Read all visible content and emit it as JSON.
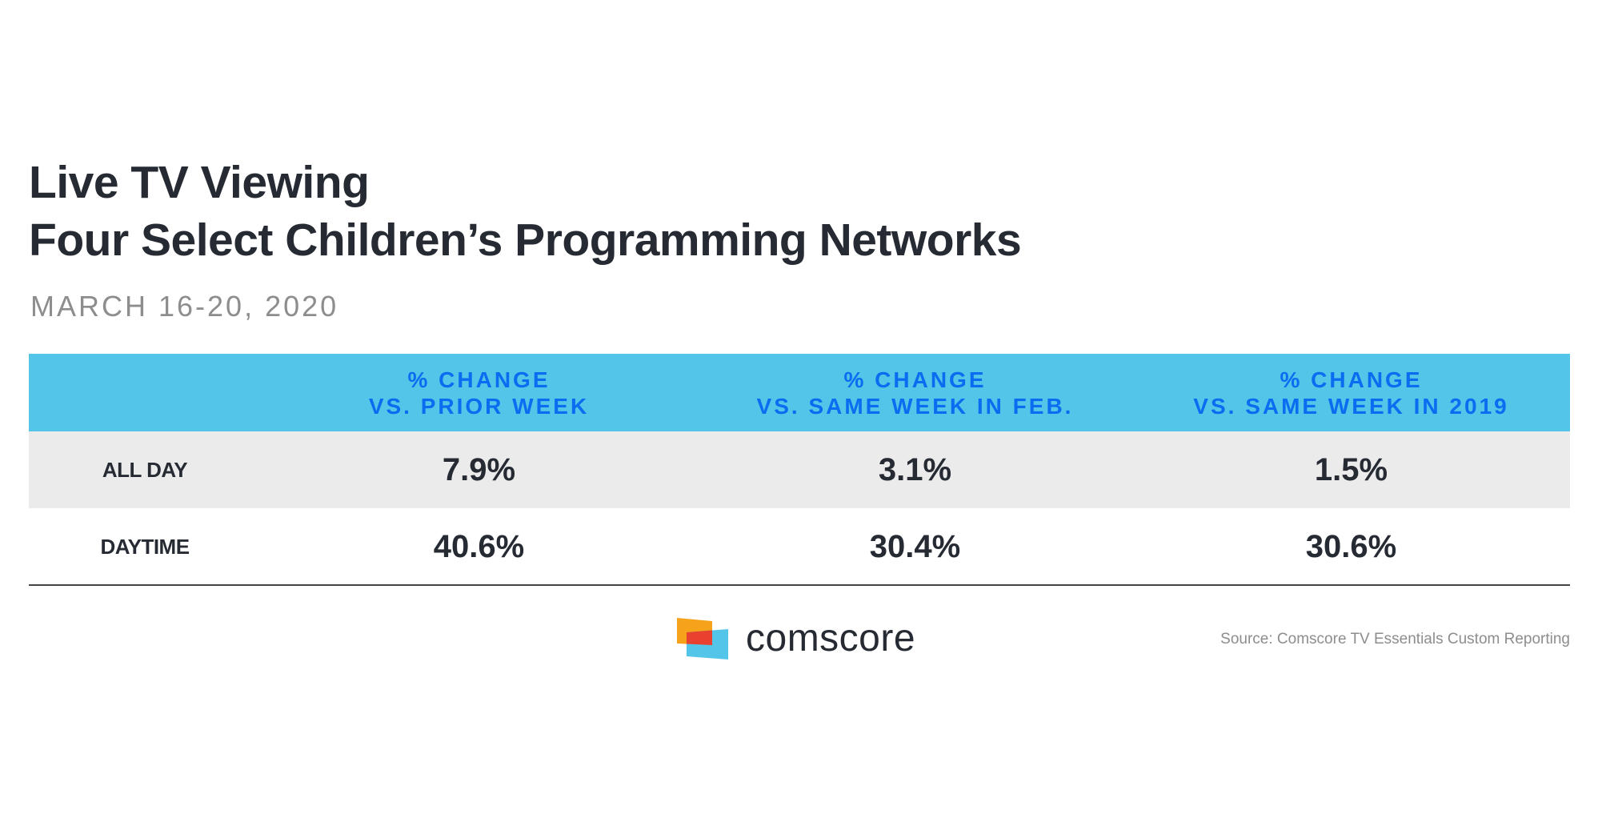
{
  "title_line1": "Live TV Viewing",
  "title_line2": "Four Select Children’s Programming Networks",
  "subtitle": "MARCH 16-20, 2020",
  "table": {
    "columns": [
      {
        "line1": "% CHANGE",
        "line2": "VS. PRIOR WEEK"
      },
      {
        "line1": "% CHANGE",
        "line2": "VS. SAME WEEK IN FEB."
      },
      {
        "line1": "% CHANGE",
        "line2": "VS. SAME WEEK IN 2019"
      }
    ],
    "rows": [
      {
        "label": "ALL DAY",
        "values": [
          "7.9%",
          "3.1%",
          "1.5%"
        ]
      },
      {
        "label": "DAYTIME",
        "values": [
          "40.6%",
          "30.4%",
          "30.6%"
        ]
      }
    ]
  },
  "footer": {
    "brand": "comscore",
    "source": "Source: Comscore TV Essentials Custom Reporting"
  },
  "colors": {
    "header_bg": "#52c5e8",
    "header_text": "#0a6cf0",
    "row_alt": "#ebebeb",
    "text": "#262a33"
  }
}
